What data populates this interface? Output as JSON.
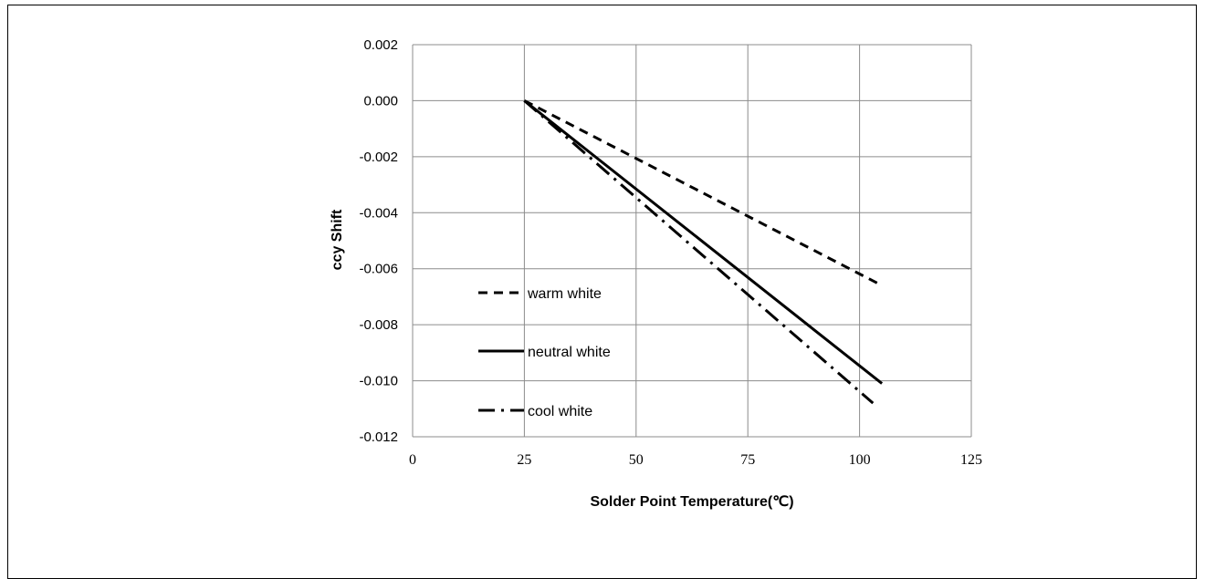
{
  "chart_data": {
    "type": "line",
    "xlabel": "Solder Point Temperature(℃)",
    "ylabel": "ccy Shift",
    "xlim": [
      0,
      125
    ],
    "ylim": [
      -0.012,
      0.002
    ],
    "x_ticks": [
      "0",
      "25",
      "50",
      "75",
      "100",
      "125"
    ],
    "y_ticks": [
      "0.002",
      "0.000",
      "-0.002",
      "-0.004",
      "-0.006",
      "-0.008",
      "-0.010",
      "-0.012"
    ],
    "grid": true,
    "legend_position": "left-inside",
    "series": [
      {
        "name": "warm white",
        "style": "dashed",
        "color": "#000000",
        "x": [
          25,
          105
        ],
        "y": [
          0.0,
          -0.0066
        ]
      },
      {
        "name": "neutral white",
        "style": "solid",
        "color": "#000000",
        "x": [
          25,
          105
        ],
        "y": [
          0.0,
          -0.0101
        ]
      },
      {
        "name": "cool white",
        "style": "dash-dot",
        "color": "#000000",
        "x": [
          25,
          103
        ],
        "y": [
          0.0,
          -0.0108
        ]
      }
    ]
  }
}
